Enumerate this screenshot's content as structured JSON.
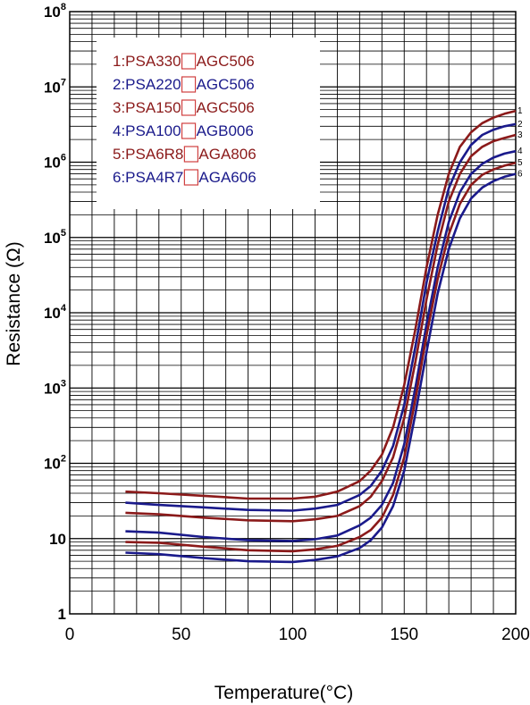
{
  "chart_data": {
    "type": "line",
    "xlabel": "Temperature(°C)",
    "ylabel": "Resistance (Ω)",
    "xlim": [
      0,
      200
    ],
    "ylim": [
      1,
      100000000
    ],
    "y_scale": "log",
    "grid": true,
    "legend_position": "top-left",
    "x_ticks": [
      "0",
      "50",
      "100",
      "150",
      "200"
    ],
    "y_ticks": [
      {
        "base": "1",
        "exp": ""
      },
      {
        "base": "10",
        "exp": ""
      },
      {
        "base": "10",
        "exp": "2"
      },
      {
        "base": "10",
        "exp": "3"
      },
      {
        "base": "10",
        "exp": "4"
      },
      {
        "base": "10",
        "exp": "5"
      },
      {
        "base": "10",
        "exp": "6"
      },
      {
        "base": "10",
        "exp": "7"
      },
      {
        "base": "10",
        "exp": "8"
      }
    ],
    "colors": {
      "red": "#8b1a1a",
      "blue": "#1a1a8b",
      "legend_box": "#d04040"
    },
    "series": [
      {
        "label": "1:PSA330",
        "label_suffix": "AGC506",
        "end_label": "1",
        "color": "#8b1a1a",
        "x": [
          25,
          40,
          60,
          80,
          100,
          110,
          120,
          130,
          135,
          140,
          145,
          150,
          155,
          160,
          165,
          170,
          175,
          180,
          185,
          190,
          195,
          200
        ],
        "y": [
          42,
          40,
          37,
          34,
          34,
          36,
          42,
          58,
          80,
          130,
          300,
          1100,
          6000,
          40000,
          200000,
          700000,
          1600000,
          2500000,
          3300000,
          3900000,
          4400000,
          4800000
        ]
      },
      {
        "label": "2:PSA220",
        "label_suffix": "AGC506",
        "end_label": "2",
        "color": "#1a1a8b",
        "x": [
          25,
          40,
          60,
          80,
          100,
          110,
          120,
          130,
          135,
          140,
          145,
          150,
          155,
          160,
          165,
          170,
          175,
          180,
          185,
          190,
          195,
          200
        ],
        "y": [
          30,
          28,
          26,
          24,
          23.5,
          25,
          28,
          38,
          50,
          80,
          170,
          600,
          3500,
          25000,
          120000,
          450000,
          1000000,
          1700000,
          2300000,
          2700000,
          3000000,
          3200000
        ]
      },
      {
        "label": "3:PSA150",
        "label_suffix": "AGC506",
        "end_label": "3",
        "color": "#8b1a1a",
        "x": [
          25,
          40,
          60,
          80,
          100,
          110,
          120,
          130,
          135,
          140,
          145,
          150,
          155,
          160,
          165,
          170,
          175,
          180,
          185,
          190,
          195,
          200
        ],
        "y": [
          22,
          21,
          19,
          17.5,
          17,
          18,
          20,
          27,
          36,
          58,
          120,
          400,
          2200,
          15000,
          80000,
          300000,
          700000,
          1200000,
          1600000,
          1900000,
          2100000,
          2300000
        ]
      },
      {
        "label": "4:PSA100",
        "label_suffix": "AGB006",
        "end_label": "4",
        "color": "#1a1a8b",
        "x": [
          25,
          40,
          60,
          80,
          100,
          110,
          120,
          130,
          135,
          140,
          145,
          150,
          155,
          160,
          165,
          170,
          175,
          180,
          185,
          190,
          195,
          200
        ],
        "y": [
          12.5,
          12,
          10.5,
          9.5,
          9.3,
          9.8,
          11,
          15,
          19,
          28,
          55,
          180,
          1000,
          7000,
          40000,
          160000,
          400000,
          700000,
          950000,
          1150000,
          1300000,
          1400000
        ]
      },
      {
        "label": "5:PSA6R8",
        "label_suffix": "AGA806",
        "end_label": "5",
        "color": "#8b1a1a",
        "x": [
          25,
          40,
          60,
          80,
          100,
          110,
          120,
          130,
          135,
          140,
          145,
          150,
          155,
          160,
          165,
          170,
          175,
          180,
          185,
          190,
          195,
          200
        ],
        "y": [
          9,
          8.8,
          7.8,
          7,
          6.8,
          7.2,
          8,
          10.5,
          13,
          19,
          38,
          120,
          700,
          5000,
          28000,
          110000,
          280000,
          500000,
          680000,
          800000,
          900000,
          980000
        ]
      },
      {
        "label": "6:PSA4R7",
        "label_suffix": "AGA606",
        "end_label": "6",
        "color": "#1a1a8b",
        "x": [
          25,
          40,
          60,
          80,
          100,
          110,
          120,
          130,
          135,
          140,
          145,
          150,
          155,
          160,
          165,
          170,
          175,
          180,
          185,
          190,
          195,
          200
        ],
        "y": [
          6.5,
          6.2,
          5.5,
          5,
          4.9,
          5.2,
          5.8,
          7.5,
          9.5,
          14,
          27,
          80,
          450,
          3000,
          18000,
          70000,
          180000,
          330000,
          460000,
          560000,
          640000,
          700000
        ]
      }
    ]
  }
}
